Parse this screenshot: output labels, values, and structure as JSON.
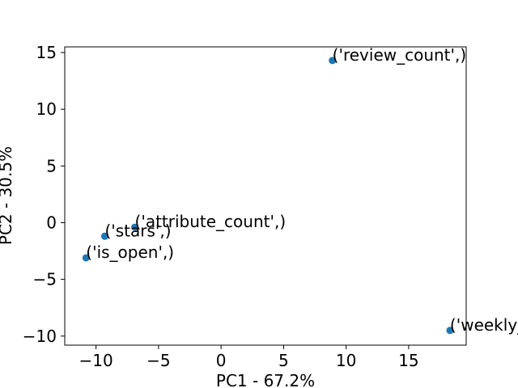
{
  "chart_data": {
    "type": "scatter",
    "title": "",
    "xlabel": "PC1 - 67.2%",
    "ylabel": "PC2 - 30.5%",
    "xlim": [
      -12.5,
      19.6
    ],
    "ylim": [
      -10.8,
      15.5
    ],
    "xticks": [
      -10,
      -5,
      0,
      5,
      10,
      15
    ],
    "yticks": [
      -10,
      -5,
      0,
      5,
      10,
      15
    ],
    "grid": false,
    "point_color": "#1f77b4",
    "points": [
      {
        "label": "('review_count',)",
        "x": 8.9,
        "y": 14.3
      },
      {
        "label": "('attribute_count',)",
        "x": -6.9,
        "y": -0.4
      },
      {
        "label": "('stars',)",
        "x": -9.3,
        "y": -1.2
      },
      {
        "label": "('is_open',)",
        "x": -10.8,
        "y": -3.1
      },
      {
        "label": "('weekly_hours',)",
        "x": 18.3,
        "y": -9.5
      }
    ]
  }
}
